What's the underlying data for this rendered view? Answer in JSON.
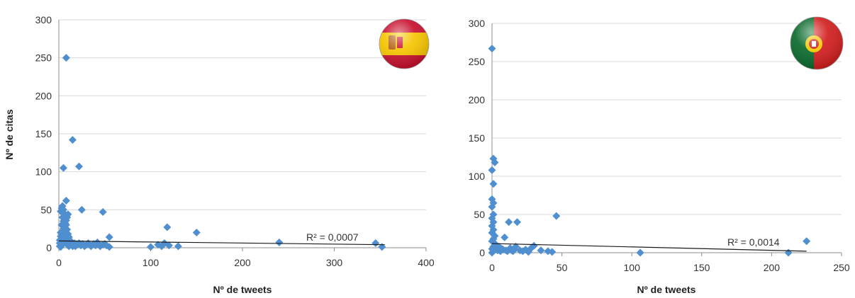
{
  "chart_data": [
    {
      "type": "scatter",
      "country_flag": "spain-flag",
      "xlabel": "Nº de tweets",
      "ylabel": "Nº de citas",
      "xlim": [
        0,
        400
      ],
      "ylim": [
        0,
        300
      ],
      "x_ticks": [
        0,
        100,
        200,
        300,
        400
      ],
      "y_ticks": [
        0,
        50,
        100,
        150,
        200,
        250,
        300
      ],
      "grid": "horizontal",
      "marker_color": "#4f8fcf",
      "trendline": {
        "r2_label": "R² = 0,0007",
        "from": [
          0,
          9
        ],
        "to": [
          355,
          4
        ]
      },
      "points": [
        [
          2,
          1
        ],
        [
          3,
          3
        ],
        [
          4,
          5
        ],
        [
          5,
          8
        ],
        [
          6,
          12
        ],
        [
          2,
          15
        ],
        [
          3,
          18
        ],
        [
          4,
          22
        ],
        [
          5,
          25
        ],
        [
          6,
          28
        ],
        [
          7,
          32
        ],
        [
          8,
          36
        ],
        [
          9,
          40
        ],
        [
          10,
          44
        ],
        [
          2,
          48
        ],
        [
          3,
          52
        ],
        [
          4,
          55
        ],
        [
          5,
          50
        ],
        [
          6,
          45
        ],
        [
          7,
          38
        ],
        [
          8,
          30
        ],
        [
          9,
          24
        ],
        [
          10,
          18
        ],
        [
          11,
          14
        ],
        [
          12,
          10
        ],
        [
          13,
          7
        ],
        [
          14,
          4
        ],
        [
          15,
          2
        ],
        [
          1,
          2
        ],
        [
          1,
          6
        ],
        [
          1,
          10
        ],
        [
          2,
          20
        ],
        [
          3,
          30
        ],
        [
          4,
          40
        ],
        [
          5,
          35
        ],
        [
          6,
          20
        ],
        [
          7,
          15
        ],
        [
          8,
          10
        ],
        [
          9,
          6
        ],
        [
          10,
          3
        ],
        [
          11,
          2
        ],
        [
          12,
          5
        ],
        [
          16,
          3
        ],
        [
          17,
          6
        ],
        [
          18,
          2
        ],
        [
          20,
          4
        ],
        [
          22,
          6
        ],
        [
          24,
          3
        ],
        [
          26,
          5
        ],
        [
          28,
          2
        ],
        [
          30,
          4
        ],
        [
          32,
          6
        ],
        [
          35,
          2
        ],
        [
          38,
          5
        ],
        [
          40,
          3
        ],
        [
          42,
          7
        ],
        [
          45,
          2
        ],
        [
          48,
          4
        ],
        [
          50,
          5
        ],
        [
          52,
          3
        ],
        [
          55,
          1
        ],
        [
          5,
          105
        ],
        [
          8,
          250
        ],
        [
          15,
          142
        ],
        [
          22,
          107
        ],
        [
          8,
          62
        ],
        [
          25,
          50
        ],
        [
          48,
          47
        ],
        [
          55,
          14
        ],
        [
          100,
          1
        ],
        [
          108,
          4
        ],
        [
          112,
          2
        ],
        [
          115,
          6
        ],
        [
          118,
          27
        ],
        [
          120,
          3
        ],
        [
          130,
          2
        ],
        [
          150,
          20
        ],
        [
          240,
          7
        ],
        [
          345,
          6
        ],
        [
          352,
          1
        ]
      ]
    },
    {
      "type": "scatter",
      "country_flag": "portugal-flag",
      "xlabel": "Nº de tweets",
      "ylabel": "",
      "xlim": [
        0,
        250
      ],
      "ylim": [
        0,
        300
      ],
      "x_ticks": [
        0,
        50,
        100,
        150,
        200,
        250
      ],
      "y_ticks": [
        0,
        50,
        100,
        150,
        200,
        250,
        300
      ],
      "grid": "horizontal",
      "marker_color": "#4f8fcf",
      "trendline": {
        "r2_label": "R² = 0,0014",
        "from": [
          0,
          12
        ],
        "to": [
          225,
          2
        ]
      },
      "points": [
        [
          0,
          0
        ],
        [
          1,
          2
        ],
        [
          0,
          5
        ],
        [
          1,
          8
        ],
        [
          2,
          12
        ],
        [
          0,
          15
        ],
        [
          1,
          18
        ],
        [
          2,
          22
        ],
        [
          0,
          26
        ],
        [
          1,
          30
        ],
        [
          0,
          35
        ],
        [
          1,
          40
        ],
        [
          0,
          45
        ],
        [
          1,
          50
        ],
        [
          0,
          60
        ],
        [
          1,
          65
        ],
        [
          0,
          70
        ],
        [
          1,
          90
        ],
        [
          0,
          108
        ],
        [
          2,
          118
        ],
        [
          1,
          123
        ],
        [
          0,
          267
        ],
        [
          2,
          4
        ],
        [
          3,
          6
        ],
        [
          4,
          3
        ],
        [
          5,
          8
        ],
        [
          6,
          2
        ],
        [
          7,
          5
        ],
        [
          8,
          4
        ],
        [
          9,
          20
        ],
        [
          10,
          3
        ],
        [
          11,
          2
        ],
        [
          12,
          40
        ],
        [
          13,
          6
        ],
        [
          14,
          3
        ],
        [
          15,
          2
        ],
        [
          16,
          4
        ],
        [
          17,
          8
        ],
        [
          18,
          40
        ],
        [
          20,
          3
        ],
        [
          22,
          2
        ],
        [
          24,
          4
        ],
        [
          26,
          1
        ],
        [
          28,
          6
        ],
        [
          30,
          9
        ],
        [
          35,
          3
        ],
        [
          40,
          2
        ],
        [
          43,
          1
        ],
        [
          46,
          48
        ],
        [
          106,
          0
        ],
        [
          212,
          0
        ],
        [
          225,
          15
        ]
      ]
    }
  ]
}
